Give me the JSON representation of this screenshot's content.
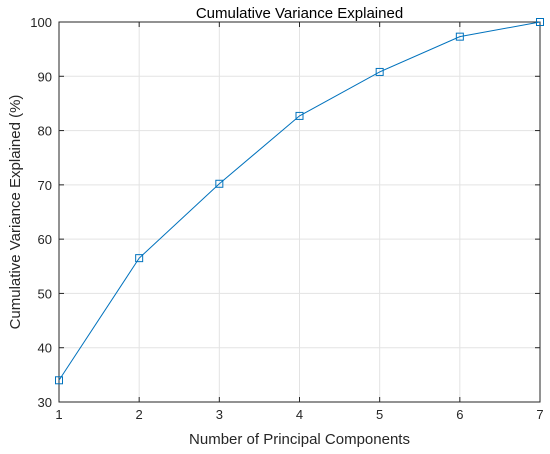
{
  "chart_data": {
    "type": "line",
    "title": "Cumulative Variance Explained",
    "xlabel": "Number of Principal Components",
    "ylabel": "Cumulative Variance Explained (%)",
    "xlim": [
      1,
      7
    ],
    "ylim": [
      30,
      100
    ],
    "x_ticks": [
      1,
      2,
      3,
      4,
      5,
      6,
      7
    ],
    "y_ticks": [
      30,
      40,
      50,
      60,
      70,
      80,
      90,
      100
    ],
    "grid": true,
    "marker": "square",
    "color": "#0072BD",
    "series": [
      {
        "x": [
          1,
          2,
          3,
          4,
          5,
          6,
          7
        ],
        "values": [
          34.0,
          56.5,
          70.2,
          82.7,
          90.8,
          97.3,
          100.0
        ]
      }
    ]
  }
}
